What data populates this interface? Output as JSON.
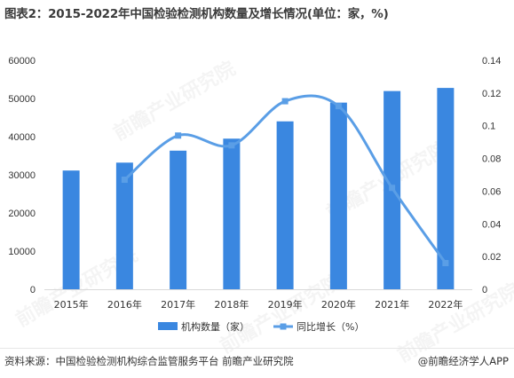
{
  "title": "图表2：2015-2022年中国检验检测机构数量及增长情况(单位：家，%)",
  "source": "资料来源：中国检验检测机构综合监管服务平台 前瞻产业研究院",
  "brand": "@前瞻经济学人APP",
  "watermark": "前瞻产业研究院",
  "colors": {
    "bar": "#3a87e0",
    "line": "#5a9ee6",
    "axis": "#d9d9d9",
    "text": "#333333"
  },
  "chart_data": {
    "type": "bar",
    "categories": [
      "2015年",
      "2016年",
      "2017年",
      "2018年",
      "2019年",
      "2020年",
      "2021年",
      "2022年"
    ],
    "series": [
      {
        "name": "机构数量（家）",
        "type": "bar",
        "axis": "left",
        "values": [
          31122,
          33189,
          36327,
          39472,
          44007,
          48919,
          51949,
          52769
        ]
      },
      {
        "name": "同比增长（%）",
        "type": "line",
        "axis": "right",
        "smooth": true,
        "values": [
          null,
          0.067,
          0.094,
          0.088,
          0.115,
          0.112,
          0.062,
          0.016
        ]
      }
    ],
    "left_axis": {
      "min": 0,
      "max": 60000,
      "ticks": [
        0,
        10000,
        20000,
        30000,
        40000,
        50000,
        60000
      ]
    },
    "right_axis": {
      "min": 0,
      "max": 0.14,
      "ticks": [
        "0",
        "0.02",
        "0.04",
        "0.06",
        "0.08",
        "0.1",
        "0.12",
        "0.14"
      ]
    },
    "legend": "bottom-center",
    "grid": false
  }
}
